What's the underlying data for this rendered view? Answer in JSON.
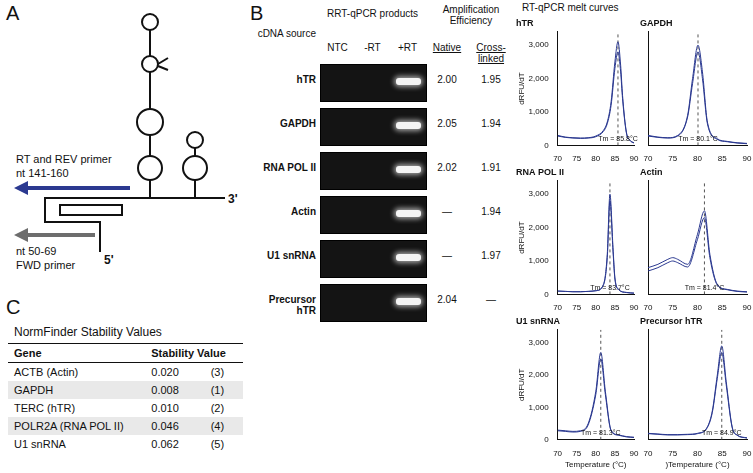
{
  "panel_a": {
    "label": "A",
    "rt_primer": [
      "RT and REV primer",
      "nt 141-160"
    ],
    "fwd_primer": [
      "nt 50-69",
      "FWD primer"
    ],
    "five_prime": "5'",
    "three_prime": "3'"
  },
  "panel_b": {
    "label": "B",
    "source_header": "cDNA source",
    "gel_header": "RRT-qPCR products",
    "lanes": [
      "NTC",
      "-RT",
      "+RT"
    ],
    "efficiency_header": "Amplification Efficiency",
    "efficiency_columns": [
      "Native",
      "Cross-linked"
    ],
    "rows": [
      {
        "source": "hTR",
        "native": "2.00",
        "cross_linked": "1.95"
      },
      {
        "source": "GAPDH",
        "native": "2.05",
        "cross_linked": "1.94"
      },
      {
        "source": "RNA POL II",
        "native": "2.02",
        "cross_linked": "1.91"
      },
      {
        "source": "Actin",
        "native": "—",
        "cross_linked": "1.94"
      },
      {
        "source": "U1 snRNA",
        "native": "—",
        "cross_linked": "1.97"
      },
      {
        "source": "Precursor hTR",
        "native": "2.04",
        "cross_linked": "—"
      }
    ],
    "melt_header": "RT-qPCR melt curves"
  },
  "chart_data": [
    {
      "type": "line",
      "title": "hTR",
      "x": [
        70,
        72,
        74,
        76,
        78,
        80,
        82,
        83,
        84,
        85,
        85.8,
        86.5,
        87,
        88,
        89,
        90
      ],
      "series": [
        {
          "values": [
            300,
            250,
            230,
            220,
            230,
            280,
            450,
            700,
            1300,
            2500,
            3100,
            2400,
            1500,
            400,
            150,
            80
          ]
        },
        {
          "values": [
            280,
            240,
            220,
            210,
            220,
            260,
            420,
            650,
            1200,
            2300,
            2800,
            2200,
            1400,
            380,
            140,
            70
          ]
        }
      ],
      "color": "#2b3990",
      "xlim": [
        70,
        90
      ],
      "xticks": [
        70,
        75,
        80,
        85,
        90
      ],
      "ylim": [
        0,
        3400
      ],
      "yticks": [
        0,
        1000,
        2000,
        3000
      ],
      "grid": false,
      "tm": 85.8,
      "annotation": "Tm = 85.8°C",
      "y_label": "dRFU/dT"
    },
    {
      "type": "line",
      "title": "GAPDH",
      "x": [
        70,
        72,
        74,
        76,
        78,
        79,
        80.1,
        81,
        82,
        84,
        86,
        88,
        90
      ],
      "series": [
        {
          "values": [
            300,
            250,
            230,
            300,
            900,
            2000,
            3000,
            2200,
            700,
            200,
            120,
            80,
            60
          ]
        },
        {
          "values": [
            280,
            240,
            220,
            280,
            850,
            1850,
            2800,
            2000,
            650,
            180,
            110,
            70,
            50
          ]
        }
      ],
      "color": "#2b3990",
      "xlim": [
        70,
        90
      ],
      "xticks": [
        70,
        75,
        80,
        85,
        90
      ],
      "ylim": [
        0,
        3400
      ],
      "yticks": [
        0,
        1000,
        2000,
        3000
      ],
      "grid": false,
      "tm": 80.1,
      "annotation": "Tm = 80.1°C",
      "tick_labels": "x"
    },
    {
      "type": "line",
      "title": "RNA POL II",
      "x": [
        70,
        72,
        74,
        76,
        78,
        80,
        82,
        83,
        83.7,
        84.5,
        85,
        86,
        88,
        90
      ],
      "series": [
        {
          "values": [
            100,
            90,
            80,
            80,
            90,
            110,
            300,
            1200,
            3000,
            1400,
            500,
            150,
            60,
            40
          ]
        },
        {
          "values": [
            100,
            90,
            80,
            80,
            90,
            110,
            280,
            1100,
            2800,
            1300,
            460,
            140,
            55,
            35
          ]
        }
      ],
      "color": "#2b3990",
      "xlim": [
        70,
        90
      ],
      "xticks": [
        70,
        75,
        80,
        85,
        90
      ],
      "ylim": [
        0,
        3400
      ],
      "yticks": [
        0,
        1000,
        2000,
        3000
      ],
      "grid": false,
      "tm": 83.7,
      "annotation": "Tm = 83.7°C",
      "y_label": "dRFU/dT"
    },
    {
      "type": "line",
      "title": "Actin",
      "x": [
        70,
        72,
        74,
        75,
        76,
        78,
        80,
        81.4,
        82.5,
        84,
        86,
        88,
        90
      ],
      "series": [
        {
          "values": [
            800,
            900,
            1050,
            1100,
            1050,
            900,
            1800,
            2500,
            1200,
            300,
            150,
            100,
            80
          ]
        },
        {
          "values": [
            700,
            800,
            950,
            1000,
            950,
            820,
            1650,
            2300,
            1100,
            280,
            140,
            90,
            70
          ]
        }
      ],
      "color": "#2b3990",
      "xlim": [
        70,
        90
      ],
      "xticks": [
        70,
        75,
        80,
        85,
        90
      ],
      "ylim": [
        0,
        3400
      ],
      "yticks": [
        0,
        1000,
        2000,
        3000
      ],
      "grid": false,
      "tm": 81.4,
      "annotation": "Tm = 81.4°C",
      "tick_labels": "x"
    },
    {
      "type": "line",
      "title": "U1 snRNA",
      "x": [
        70,
        72,
        74,
        76,
        78,
        80,
        81.3,
        82.5,
        84,
        86,
        88,
        90
      ],
      "series": [
        {
          "values": [
            300,
            280,
            260,
            280,
            500,
            1500,
            2700,
            1500,
            300,
            150,
            100,
            80
          ]
        },
        {
          "values": [
            280,
            260,
            240,
            260,
            460,
            1400,
            2500,
            1400,
            280,
            140,
            90,
            70
          ]
        }
      ],
      "color": "#2b3990",
      "xlim": [
        70,
        90
      ],
      "xticks": [
        70,
        75,
        80,
        85,
        90
      ],
      "ylim": [
        0,
        3400
      ],
      "yticks": [
        0,
        1000,
        2000,
        3000
      ],
      "grid": false,
      "tm": 81.3,
      "annotation": "Tm = 81.3°C",
      "y_label": "dRFU/dT",
      "x_label": "Temperature (°C)"
    },
    {
      "type": "line",
      "title": "Precursor hTR",
      "x": [
        70,
        72,
        74,
        76,
        78,
        80,
        82,
        83,
        84,
        84.9,
        85.8,
        87,
        88,
        90
      ],
      "series": [
        {
          "values": [
            200,
            180,
            160,
            160,
            170,
            200,
            400,
            900,
            2000,
            2900,
            1800,
            400,
            150,
            60
          ]
        },
        {
          "values": [
            190,
            170,
            150,
            150,
            160,
            190,
            380,
            850,
            1900,
            2700,
            1700,
            380,
            140,
            55
          ]
        }
      ],
      "color": "#2b3990",
      "xlim": [
        70,
        90
      ],
      "xticks": [
        70,
        75,
        80,
        85,
        90
      ],
      "ylim": [
        0,
        3400
      ],
      "yticks": [
        0,
        1000,
        2000,
        3000
      ],
      "grid": false,
      "tm": 84.9,
      "annotation": "Tm = 84.9°C",
      "tick_labels": "x",
      "x_label": ")Temperature (°C)"
    }
  ],
  "panel_c": {
    "label": "C",
    "title": "NormFinder Stability Values",
    "columns": [
      "Gene",
      "Stability Value"
    ],
    "rows": [
      [
        "ACTB (Actin)",
        "0.020",
        "(3)"
      ],
      [
        "GAPDH",
        "0.008",
        "(1)"
      ],
      [
        "TERC (hTR)",
        "0.010",
        "(2)"
      ],
      [
        "POLR2A (RNA POL II)",
        "0.046",
        "(4)"
      ],
      [
        "U1 snRNA",
        "0.062",
        "(5)"
      ]
    ]
  }
}
